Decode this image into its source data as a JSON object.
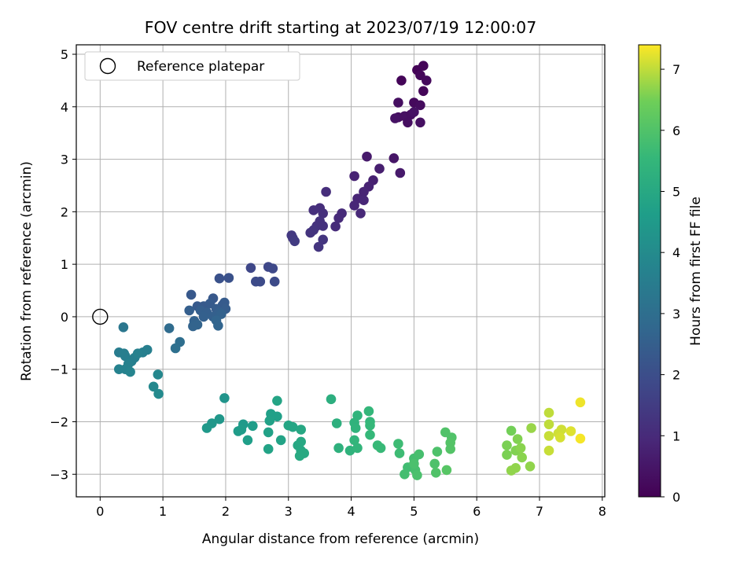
{
  "chart_data": {
    "type": "scatter",
    "title": "FOV centre drift starting at 2023/07/19 12:00:07",
    "xlabel": "Angular distance from reference (arcmin)",
    "ylabel": "Rotation from reference (arcmin)",
    "xlim": [
      -0.38,
      8.04
    ],
    "ylim": [
      -3.43,
      5.18
    ],
    "xticks": [
      "0",
      "1",
      "2",
      "3",
      "4",
      "5",
      "6",
      "7",
      "8"
    ],
    "yticks": [
      "−3",
      "−2",
      "−1",
      "0",
      "1",
      "2",
      "3",
      "4",
      "5"
    ],
    "grid": true,
    "legend": {
      "placement": "top-left",
      "entries": [
        "Reference platepar"
      ]
    },
    "reference_point": {
      "x": 0,
      "y": 0,
      "label": "Reference platepar"
    },
    "colorbar": {
      "label": "Hours from first FF file",
      "colormap": "viridis",
      "range": [
        0,
        7.4
      ],
      "ticks": [
        "0",
        "1",
        "2",
        "3",
        "4",
        "5",
        "6",
        "7"
      ]
    },
    "points": [
      {
        "x": 4.8,
        "y": 4.5,
        "c": 0.1
      },
      {
        "x": 5.05,
        "y": 4.7,
        "c": 0.05
      },
      {
        "x": 5.15,
        "y": 4.78,
        "c": 0.1
      },
      {
        "x": 5.1,
        "y": 4.6,
        "c": 0.15
      },
      {
        "x": 5.2,
        "y": 4.5,
        "c": 0.2
      },
      {
        "x": 5.15,
        "y": 4.3,
        "c": 0.1
      },
      {
        "x": 5.0,
        "y": 4.08,
        "c": 0.2
      },
      {
        "x": 5.1,
        "y": 4.03,
        "c": 0.25
      },
      {
        "x": 4.75,
        "y": 4.08,
        "c": 0.3
      },
      {
        "x": 4.75,
        "y": 3.8,
        "c": 0.3
      },
      {
        "x": 4.85,
        "y": 3.82,
        "c": 0.35
      },
      {
        "x": 4.95,
        "y": 3.85,
        "c": 0.3
      },
      {
        "x": 5.0,
        "y": 3.9,
        "c": 0.4
      },
      {
        "x": 4.9,
        "y": 3.7,
        "c": 0.3
      },
      {
        "x": 5.1,
        "y": 3.7,
        "c": 0.35
      },
      {
        "x": 4.7,
        "y": 3.78,
        "c": 0.4
      },
      {
        "x": 4.25,
        "y": 3.05,
        "c": 0.6
      },
      {
        "x": 4.68,
        "y": 3.02,
        "c": 0.5
      },
      {
        "x": 4.78,
        "y": 2.74,
        "c": 0.6
      },
      {
        "x": 4.45,
        "y": 2.82,
        "c": 0.7
      },
      {
        "x": 4.35,
        "y": 2.6,
        "c": 0.75
      },
      {
        "x": 4.05,
        "y": 2.68,
        "c": 0.8
      },
      {
        "x": 4.28,
        "y": 2.48,
        "c": 0.8
      },
      {
        "x": 4.2,
        "y": 2.38,
        "c": 0.85
      },
      {
        "x": 4.1,
        "y": 2.25,
        "c": 0.85
      },
      {
        "x": 4.05,
        "y": 2.12,
        "c": 0.9
      },
      {
        "x": 4.2,
        "y": 2.22,
        "c": 0.9
      },
      {
        "x": 4.15,
        "y": 1.97,
        "c": 0.95
      },
      {
        "x": 3.85,
        "y": 1.97,
        "c": 1.0
      },
      {
        "x": 3.8,
        "y": 1.88,
        "c": 1.0
      },
      {
        "x": 3.75,
        "y": 1.72,
        "c": 1.05
      },
      {
        "x": 3.6,
        "y": 2.38,
        "c": 1.1
      },
      {
        "x": 3.5,
        "y": 2.07,
        "c": 1.1
      },
      {
        "x": 3.4,
        "y": 2.03,
        "c": 1.15
      },
      {
        "x": 3.55,
        "y": 1.97,
        "c": 1.15
      },
      {
        "x": 3.5,
        "y": 1.82,
        "c": 1.2
      },
      {
        "x": 3.45,
        "y": 1.73,
        "c": 1.2
      },
      {
        "x": 3.55,
        "y": 1.73,
        "c": 1.2
      },
      {
        "x": 3.4,
        "y": 1.65,
        "c": 1.25
      },
      {
        "x": 3.35,
        "y": 1.6,
        "c": 1.25
      },
      {
        "x": 3.55,
        "y": 1.47,
        "c": 1.3
      },
      {
        "x": 3.48,
        "y": 1.33,
        "c": 1.3
      },
      {
        "x": 3.05,
        "y": 1.55,
        "c": 1.4
      },
      {
        "x": 3.07,
        "y": 1.5,
        "c": 1.4
      },
      {
        "x": 3.1,
        "y": 1.44,
        "c": 1.45
      },
      {
        "x": 2.4,
        "y": 0.93,
        "c": 1.8
      },
      {
        "x": 2.68,
        "y": 0.95,
        "c": 1.8
      },
      {
        "x": 2.75,
        "y": 0.92,
        "c": 1.85
      },
      {
        "x": 2.48,
        "y": 0.67,
        "c": 1.9
      },
      {
        "x": 2.55,
        "y": 0.67,
        "c": 1.9
      },
      {
        "x": 2.78,
        "y": 0.67,
        "c": 1.9
      },
      {
        "x": 1.9,
        "y": 0.73,
        "c": 2.1
      },
      {
        "x": 2.05,
        "y": 0.74,
        "c": 2.1
      },
      {
        "x": 1.45,
        "y": 0.42,
        "c": 2.3
      },
      {
        "x": 1.8,
        "y": 0.35,
        "c": 2.3
      },
      {
        "x": 1.55,
        "y": 0.2,
        "c": 2.35
      },
      {
        "x": 1.65,
        "y": 0.2,
        "c": 2.35
      },
      {
        "x": 1.75,
        "y": 0.25,
        "c": 2.4
      },
      {
        "x": 1.95,
        "y": 0.22,
        "c": 2.4
      },
      {
        "x": 1.98,
        "y": 0.27,
        "c": 2.4
      },
      {
        "x": 1.85,
        "y": 0.15,
        "c": 2.45
      },
      {
        "x": 2.0,
        "y": 0.15,
        "c": 2.45
      },
      {
        "x": 1.42,
        "y": 0.12,
        "c": 2.5
      },
      {
        "x": 1.6,
        "y": 0.12,
        "c": 2.5
      },
      {
        "x": 1.7,
        "y": 0.08,
        "c": 2.5
      },
      {
        "x": 1.9,
        "y": 0.08,
        "c": 2.55
      },
      {
        "x": 1.65,
        "y": 0.0,
        "c": 2.55
      },
      {
        "x": 1.8,
        "y": 0.0,
        "c": 2.55
      },
      {
        "x": 1.93,
        "y": 0.05,
        "c": 2.6
      },
      {
        "x": 1.5,
        "y": -0.08,
        "c": 2.6
      },
      {
        "x": 1.55,
        "y": -0.15,
        "c": 2.65
      },
      {
        "x": 1.48,
        "y": -0.18,
        "c": 2.65
      },
      {
        "x": 1.85,
        "y": -0.07,
        "c": 2.7
      },
      {
        "x": 1.88,
        "y": -0.17,
        "c": 2.7
      },
      {
        "x": 1.1,
        "y": -0.22,
        "c": 2.9
      },
      {
        "x": 1.27,
        "y": -0.48,
        "c": 3.0
      },
      {
        "x": 1.2,
        "y": -0.6,
        "c": 3.05
      },
      {
        "x": 0.37,
        "y": -0.2,
        "c": 3.3
      },
      {
        "x": 0.3,
        "y": -0.68,
        "c": 3.5
      },
      {
        "x": 0.38,
        "y": -0.7,
        "c": 3.55
      },
      {
        "x": 0.4,
        "y": -0.75,
        "c": 3.55
      },
      {
        "x": 0.5,
        "y": -0.85,
        "c": 3.6
      },
      {
        "x": 0.55,
        "y": -0.78,
        "c": 3.6
      },
      {
        "x": 0.45,
        "y": -0.9,
        "c": 3.65
      },
      {
        "x": 0.68,
        "y": -0.68,
        "c": 3.6
      },
      {
        "x": 0.75,
        "y": -0.63,
        "c": 3.6
      },
      {
        "x": 0.6,
        "y": -0.7,
        "c": 3.65
      },
      {
        "x": 0.3,
        "y": -1.0,
        "c": 3.7
      },
      {
        "x": 0.4,
        "y": -1.0,
        "c": 3.7
      },
      {
        "x": 0.48,
        "y": -1.05,
        "c": 3.75
      },
      {
        "x": 0.92,
        "y": -1.1,
        "c": 3.85
      },
      {
        "x": 0.85,
        "y": -1.33,
        "c": 3.9
      },
      {
        "x": 0.93,
        "y": -1.47,
        "c": 3.95
      },
      {
        "x": 1.98,
        "y": -1.55,
        "c": 4.3
      },
      {
        "x": 1.9,
        "y": -1.95,
        "c": 4.4
      },
      {
        "x": 1.78,
        "y": -2.03,
        "c": 4.4
      },
      {
        "x": 1.7,
        "y": -2.12,
        "c": 4.45
      },
      {
        "x": 2.28,
        "y": -2.05,
        "c": 4.5
      },
      {
        "x": 2.2,
        "y": -2.18,
        "c": 4.55
      },
      {
        "x": 2.25,
        "y": -2.15,
        "c": 4.55
      },
      {
        "x": 2.43,
        "y": -2.08,
        "c": 4.6
      },
      {
        "x": 2.35,
        "y": -2.35,
        "c": 4.65
      },
      {
        "x": 2.72,
        "y": -1.85,
        "c": 4.7
      },
      {
        "x": 2.82,
        "y": -1.9,
        "c": 4.7
      },
      {
        "x": 2.7,
        "y": -1.98,
        "c": 4.75
      },
      {
        "x": 2.68,
        "y": -2.2,
        "c": 4.75
      },
      {
        "x": 2.88,
        "y": -2.35,
        "c": 4.8
      },
      {
        "x": 2.68,
        "y": -2.52,
        "c": 4.8
      },
      {
        "x": 2.82,
        "y": -1.6,
        "c": 4.85
      },
      {
        "x": 3.0,
        "y": -2.07,
        "c": 4.9
      },
      {
        "x": 3.07,
        "y": -2.1,
        "c": 4.9
      },
      {
        "x": 3.2,
        "y": -2.15,
        "c": 4.95
      },
      {
        "x": 3.15,
        "y": -2.45,
        "c": 4.95
      },
      {
        "x": 3.2,
        "y": -2.38,
        "c": 5.0
      },
      {
        "x": 3.2,
        "y": -2.55,
        "c": 5.0
      },
      {
        "x": 3.25,
        "y": -2.6,
        "c": 5.05
      },
      {
        "x": 3.18,
        "y": -2.65,
        "c": 5.05
      },
      {
        "x": 3.68,
        "y": -1.57,
        "c": 5.2
      },
      {
        "x": 3.77,
        "y": -2.03,
        "c": 5.25
      },
      {
        "x": 3.8,
        "y": -2.5,
        "c": 5.3
      },
      {
        "x": 3.98,
        "y": -2.55,
        "c": 5.35
      },
      {
        "x": 4.05,
        "y": -2.02,
        "c": 5.35
      },
      {
        "x": 4.1,
        "y": -1.88,
        "c": 5.4
      },
      {
        "x": 4.07,
        "y": -2.12,
        "c": 5.4
      },
      {
        "x": 4.05,
        "y": -2.35,
        "c": 5.45
      },
      {
        "x": 4.1,
        "y": -2.5,
        "c": 5.45
      },
      {
        "x": 4.28,
        "y": -1.8,
        "c": 5.5
      },
      {
        "x": 4.3,
        "y": -2.0,
        "c": 5.5
      },
      {
        "x": 4.3,
        "y": -2.07,
        "c": 5.55
      },
      {
        "x": 4.3,
        "y": -2.25,
        "c": 5.55
      },
      {
        "x": 4.42,
        "y": -2.45,
        "c": 5.6
      },
      {
        "x": 4.47,
        "y": -2.5,
        "c": 5.6
      },
      {
        "x": 4.75,
        "y": -2.42,
        "c": 5.7
      },
      {
        "x": 4.77,
        "y": -2.6,
        "c": 5.7
      },
      {
        "x": 4.9,
        "y": -2.87,
        "c": 5.75
      },
      {
        "x": 4.85,
        "y": -3.0,
        "c": 5.8
      },
      {
        "x": 5.0,
        "y": -2.7,
        "c": 5.8
      },
      {
        "x": 5.08,
        "y": -2.62,
        "c": 5.85
      },
      {
        "x": 5.02,
        "y": -2.92,
        "c": 5.85
      },
      {
        "x": 5.05,
        "y": -3.02,
        "c": 5.9
      },
      {
        "x": 5.0,
        "y": -2.8,
        "c": 5.9
      },
      {
        "x": 5.33,
        "y": -2.8,
        "c": 5.95
      },
      {
        "x": 5.37,
        "y": -2.57,
        "c": 5.95
      },
      {
        "x": 5.35,
        "y": -2.97,
        "c": 6.0
      },
      {
        "x": 5.5,
        "y": -2.2,
        "c": 6.0
      },
      {
        "x": 5.6,
        "y": -2.3,
        "c": 6.0
      },
      {
        "x": 5.58,
        "y": -2.4,
        "c": 6.05
      },
      {
        "x": 5.58,
        "y": -2.52,
        "c": 6.05
      },
      {
        "x": 5.52,
        "y": -2.92,
        "c": 6.1
      },
      {
        "x": 6.55,
        "y": -2.17,
        "c": 6.5
      },
      {
        "x": 6.48,
        "y": -2.45,
        "c": 6.55
      },
      {
        "x": 6.48,
        "y": -2.63,
        "c": 6.55
      },
      {
        "x": 6.62,
        "y": -2.55,
        "c": 6.6
      },
      {
        "x": 6.65,
        "y": -2.33,
        "c": 6.6
      },
      {
        "x": 6.7,
        "y": -2.5,
        "c": 6.65
      },
      {
        "x": 6.72,
        "y": -2.68,
        "c": 6.65
      },
      {
        "x": 6.62,
        "y": -2.88,
        "c": 6.7
      },
      {
        "x": 6.55,
        "y": -2.93,
        "c": 6.7
      },
      {
        "x": 6.85,
        "y": -2.85,
        "c": 6.7
      },
      {
        "x": 6.87,
        "y": -2.12,
        "c": 6.75
      },
      {
        "x": 7.15,
        "y": -1.83,
        "c": 7.0
      },
      {
        "x": 7.15,
        "y": -2.05,
        "c": 7.0
      },
      {
        "x": 7.15,
        "y": -2.27,
        "c": 7.05
      },
      {
        "x": 7.15,
        "y": -2.55,
        "c": 7.05
      },
      {
        "x": 7.3,
        "y": -2.22,
        "c": 7.1
      },
      {
        "x": 7.35,
        "y": -2.15,
        "c": 7.1
      },
      {
        "x": 7.33,
        "y": -2.3,
        "c": 7.15
      },
      {
        "x": 7.5,
        "y": -2.18,
        "c": 7.2
      },
      {
        "x": 7.65,
        "y": -1.63,
        "c": 7.3
      },
      {
        "x": 7.65,
        "y": -2.32,
        "c": 7.35
      }
    ]
  }
}
